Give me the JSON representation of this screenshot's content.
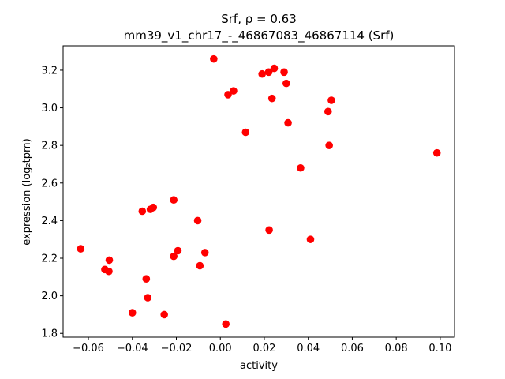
{
  "chart_data": {
    "type": "scatter",
    "title_line1": "Srf, ρ = 0.63",
    "title_line2": "mm39_v1_chr17_-_46867083_46867114 (Srf)",
    "xlabel": "activity",
    "ylabel": "expression (log₂tpm)",
    "xlim": [
      -0.0715,
      0.1065
    ],
    "ylim": [
      1.78,
      3.33
    ],
    "xticks": [
      -0.06,
      -0.04,
      -0.02,
      0.0,
      0.02,
      0.04,
      0.06,
      0.08,
      0.1
    ],
    "xtick_labels": [
      "−0.06",
      "−0.04",
      "−0.02",
      "0.00",
      "0.02",
      "0.04",
      "0.06",
      "0.08",
      "0.10"
    ],
    "yticks": [
      1.8,
      2.0,
      2.2,
      2.4,
      2.6,
      2.8,
      3.0,
      3.2
    ],
    "ytick_labels": [
      "1.8",
      "2.0",
      "2.2",
      "2.4",
      "2.6",
      "2.8",
      "3.0",
      "3.2"
    ],
    "marker_color": "#ff0000",
    "grid": false,
    "points": [
      {
        "x": -0.0635,
        "y": 2.25
      },
      {
        "x": -0.0525,
        "y": 2.14
      },
      {
        "x": -0.0507,
        "y": 2.13
      },
      {
        "x": -0.0505,
        "y": 2.19
      },
      {
        "x": -0.04,
        "y": 1.91
      },
      {
        "x": -0.0355,
        "y": 2.45
      },
      {
        "x": -0.0337,
        "y": 2.09
      },
      {
        "x": -0.033,
        "y": 1.99
      },
      {
        "x": -0.0318,
        "y": 2.46
      },
      {
        "x": -0.0305,
        "y": 2.47
      },
      {
        "x": -0.0255,
        "y": 1.9
      },
      {
        "x": -0.0212,
        "y": 2.51
      },
      {
        "x": -0.0212,
        "y": 2.21
      },
      {
        "x": -0.0193,
        "y": 2.24
      },
      {
        "x": -0.0103,
        "y": 2.4
      },
      {
        "x": -0.0093,
        "y": 2.16
      },
      {
        "x": -0.007,
        "y": 2.23
      },
      {
        "x": -0.003,
        "y": 3.26
      },
      {
        "x": 0.0025,
        "y": 1.85
      },
      {
        "x": 0.0035,
        "y": 3.07
      },
      {
        "x": 0.006,
        "y": 3.09
      },
      {
        "x": 0.0115,
        "y": 2.87
      },
      {
        "x": 0.019,
        "y": 3.18
      },
      {
        "x": 0.022,
        "y": 3.19
      },
      {
        "x": 0.0222,
        "y": 2.35
      },
      {
        "x": 0.0235,
        "y": 3.05
      },
      {
        "x": 0.0245,
        "y": 3.21
      },
      {
        "x": 0.029,
        "y": 3.19
      },
      {
        "x": 0.03,
        "y": 3.13
      },
      {
        "x": 0.0308,
        "y": 2.92
      },
      {
        "x": 0.0365,
        "y": 2.68
      },
      {
        "x": 0.041,
        "y": 2.3
      },
      {
        "x": 0.049,
        "y": 2.98
      },
      {
        "x": 0.0495,
        "y": 2.8
      },
      {
        "x": 0.0505,
        "y": 3.04
      },
      {
        "x": 0.0985,
        "y": 2.76
      }
    ]
  }
}
